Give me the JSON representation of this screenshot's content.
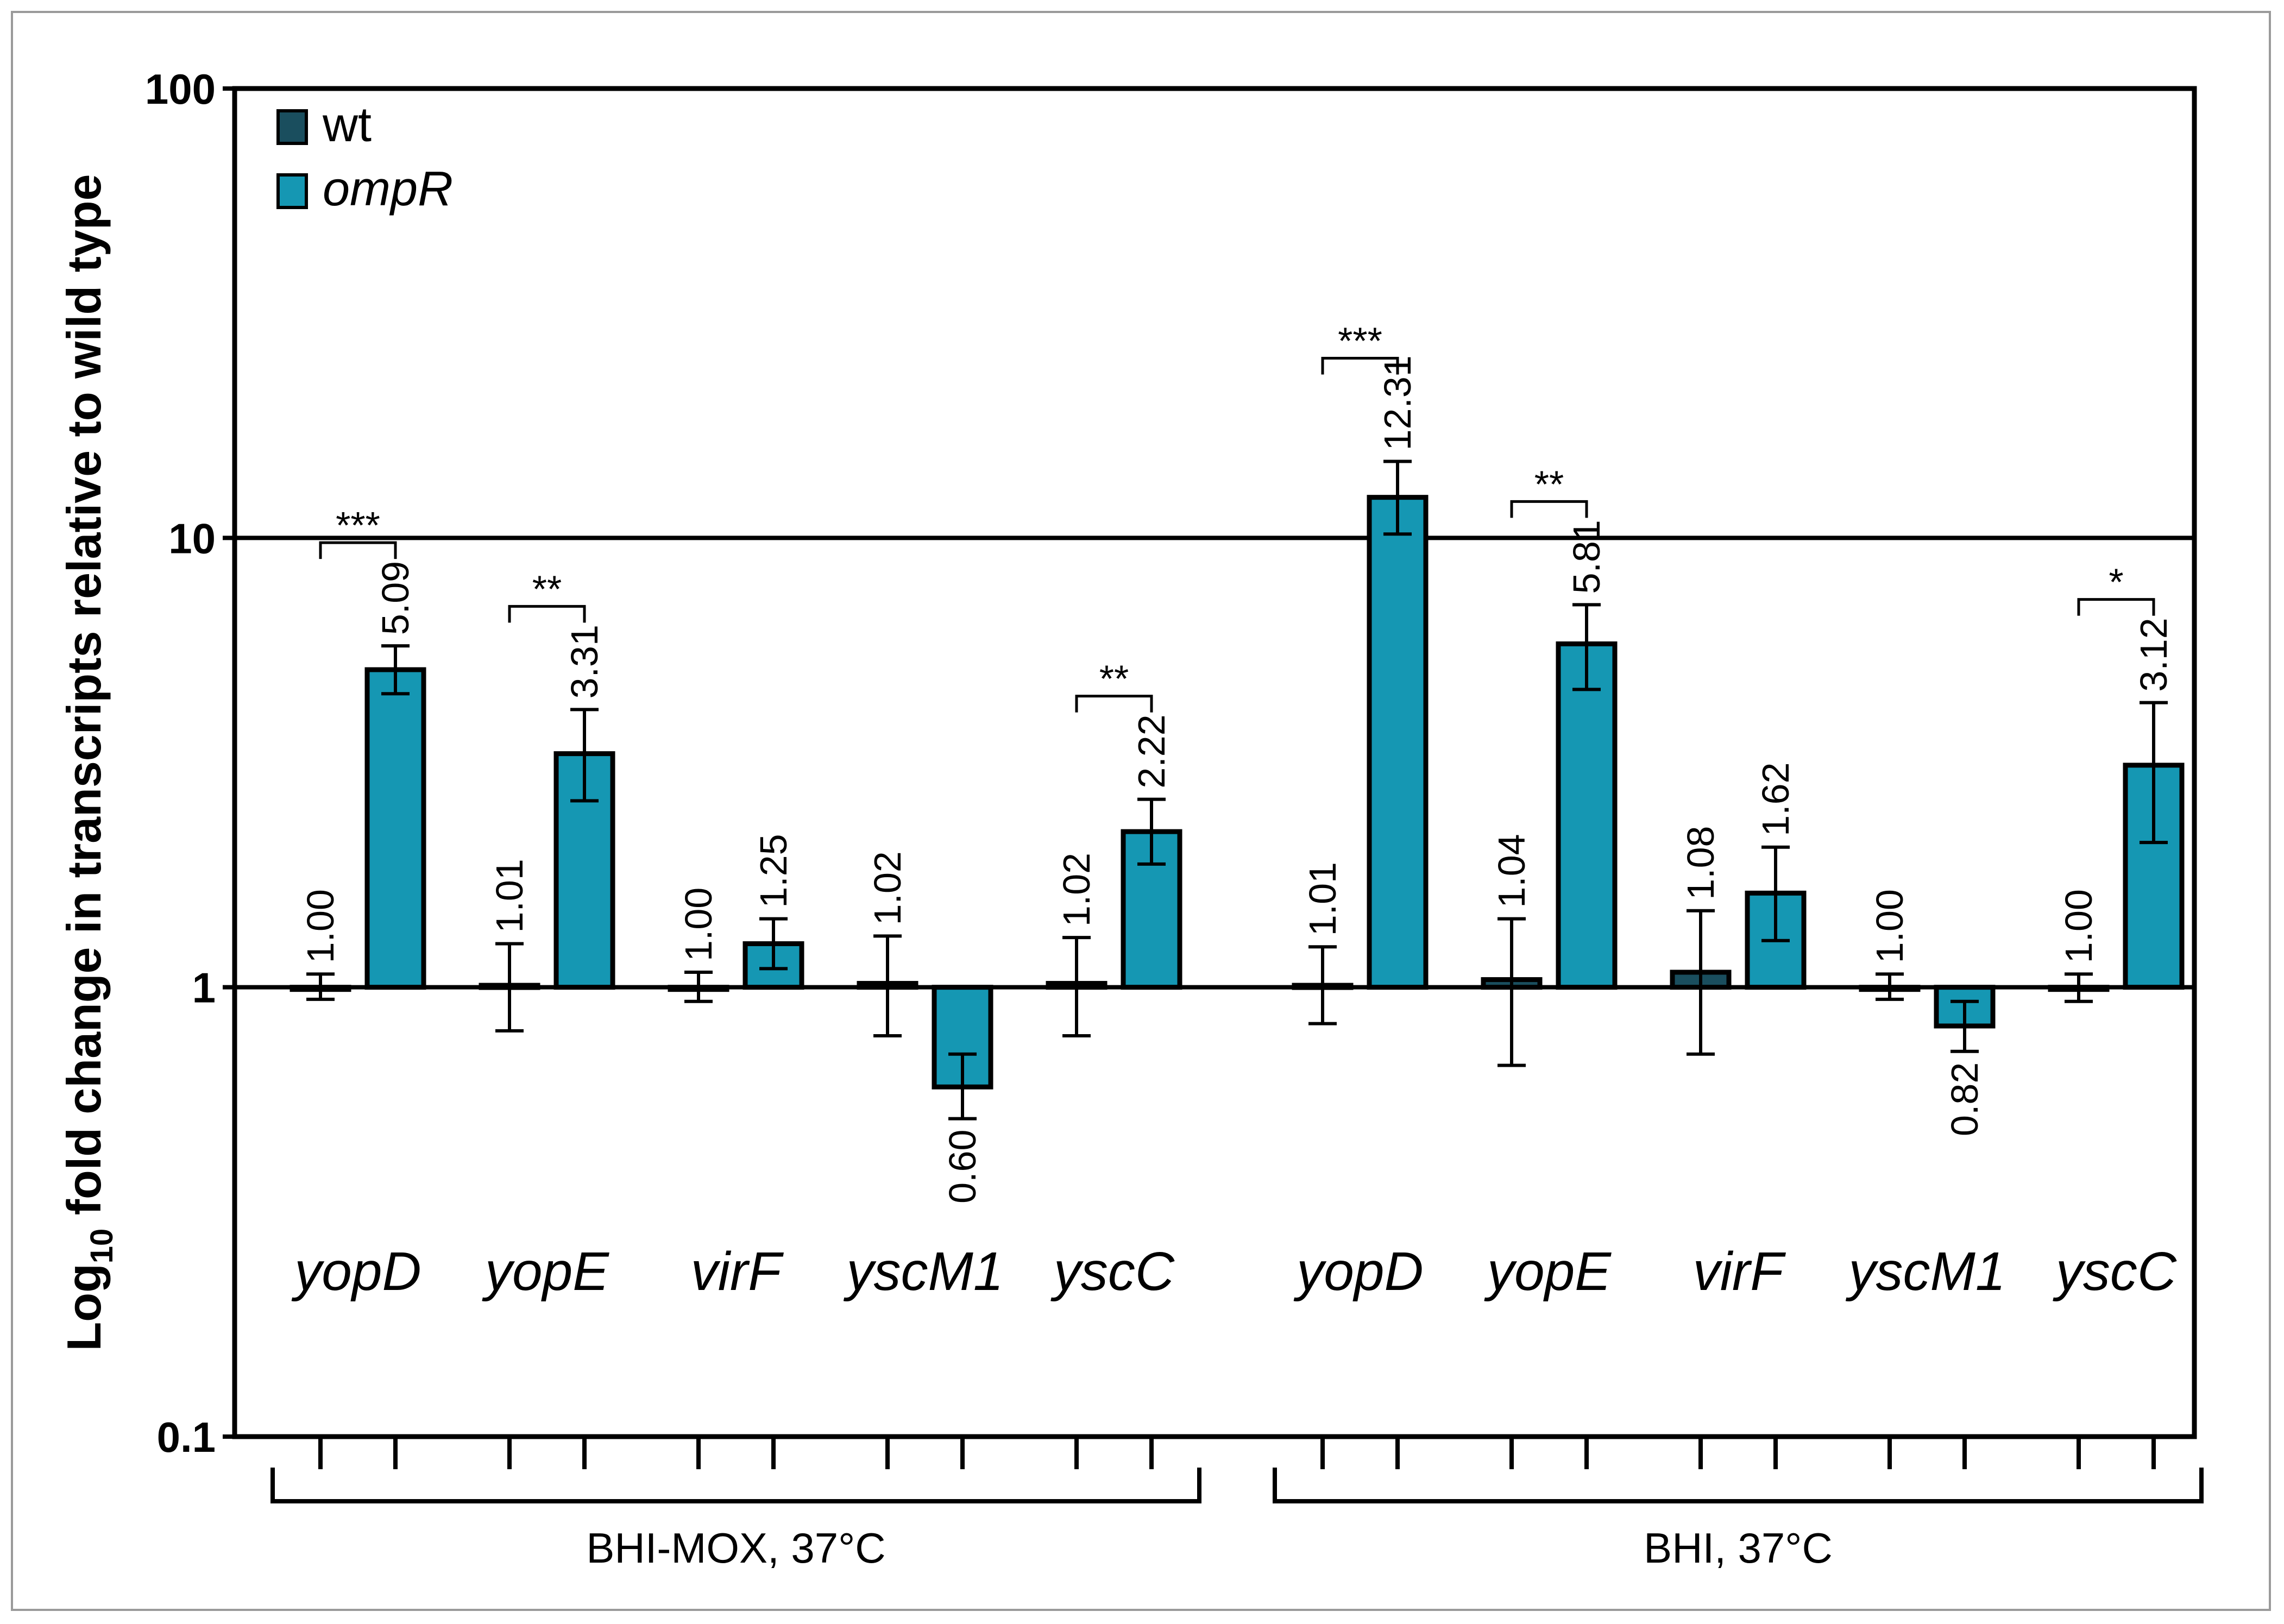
{
  "chart_data": {
    "type": "bar",
    "scale": "log10",
    "ylabel_prefix": "Log",
    "ylabel_sub": "10",
    "ylabel_rest": " fold change in transcripts relative to wild type",
    "ylim": [
      0.1,
      100
    ],
    "yticks": [
      {
        "value": 0.1,
        "label": "0.1"
      },
      {
        "value": 1,
        "label": "1"
      },
      {
        "value": 10,
        "label": "10"
      },
      {
        "value": 100,
        "label": "100"
      }
    ],
    "reference_lines": [
      1,
      10
    ],
    "legend": [
      {
        "name": "wt",
        "color": "#1a4e5e",
        "italic": false
      },
      {
        "name": "ompR",
        "color": "#1597b3",
        "italic": true
      }
    ],
    "groups": [
      {
        "condition": "BHI-MOX, 37°C",
        "genes": [
          {
            "gene": "yopD",
            "wt": 1.0,
            "wt_label": "1.00",
            "wt_err": [
              0.94,
              1.07
            ],
            "ompR": 5.09,
            "ompR_label": "5.09",
            "ompR_err": [
              4.5,
              5.75
            ],
            "sig": "***"
          },
          {
            "gene": "yopE",
            "wt": 1.01,
            "wt_label": "1.01",
            "wt_err": [
              0.8,
              1.25
            ],
            "ompR": 3.31,
            "ompR_label": "3.31",
            "ompR_err": [
              2.6,
              4.15
            ],
            "sig": "**"
          },
          {
            "gene": "virF",
            "wt": 1.0,
            "wt_label": "1.00",
            "wt_err": [
              0.93,
              1.08
            ],
            "ompR": 1.25,
            "ompR_label": "1.25",
            "ompR_err": [
              1.1,
              1.42
            ],
            "sig": ""
          },
          {
            "gene": "yscM1",
            "wt": 1.02,
            "wt_label": "1.02",
            "wt_err": [
              0.78,
              1.3
            ],
            "ompR": 0.6,
            "ompR_label": "0.60",
            "ompR_err": [
              0.51,
              0.71
            ],
            "sig": ""
          },
          {
            "gene": "yscC",
            "wt": 1.02,
            "wt_label": "1.02",
            "wt_err": [
              0.78,
              1.29
            ],
            "ompR": 2.22,
            "ompR_label": "2.22",
            "ompR_err": [
              1.88,
              2.62
            ],
            "sig": "**"
          }
        ]
      },
      {
        "condition": "BHI, 37°C",
        "genes": [
          {
            "gene": "yopD",
            "wt": 1.01,
            "wt_label": "1.01",
            "wt_err": [
              0.83,
              1.23
            ],
            "ompR": 12.31,
            "ompR_label": "12.31",
            "ompR_err": [
              10.2,
              14.8
            ],
            "sig": "***"
          },
          {
            "gene": "yopE",
            "wt": 1.04,
            "wt_label": "1.04",
            "wt_err": [
              0.67,
              1.42
            ],
            "ompR": 5.81,
            "ompR_label": "5.81",
            "ompR_err": [
              4.6,
              7.1
            ],
            "sig": "**"
          },
          {
            "gene": "virF",
            "wt": 1.08,
            "wt_label": "1.08",
            "wt_err": [
              0.71,
              1.48
            ],
            "ompR": 1.62,
            "ompR_label": "1.62",
            "ompR_err": [
              1.27,
              2.05
            ],
            "sig": ""
          },
          {
            "gene": "yscM1",
            "wt": 1.0,
            "wt_label": "1.00",
            "wt_err": [
              0.94,
              1.07
            ],
            "ompR": 0.82,
            "ompR_label": "0.82",
            "ompR_err": [
              0.72,
              0.93
            ],
            "sig": ""
          },
          {
            "gene": "yscC",
            "wt": 1.0,
            "wt_label": "1.00",
            "wt_err": [
              0.93,
              1.07
            ],
            "ompR": 3.12,
            "ompR_label": "3.12",
            "ompR_err": [
              2.1,
              4.3
            ],
            "sig": "*"
          }
        ]
      }
    ]
  }
}
